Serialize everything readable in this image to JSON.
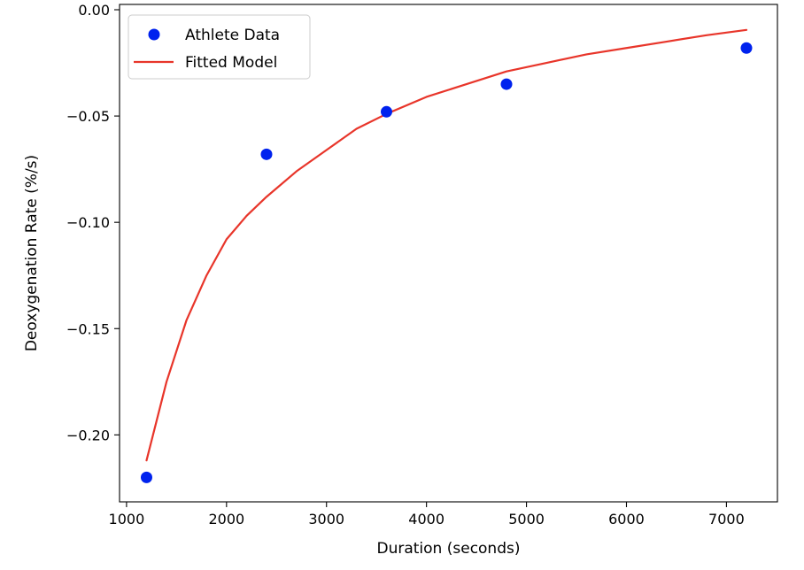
{
  "chart_data": {
    "type": "scatter",
    "xlabel": "Duration (seconds)",
    "ylabel": "Deoxygenation Rate (%/s)",
    "xlim": [
      930,
      7510
    ],
    "ylim": [
      -0.2315,
      0.0025
    ],
    "x_ticks": [
      1000,
      2000,
      3000,
      4000,
      5000,
      6000,
      7000
    ],
    "y_ticks": [
      0.0,
      -0.05,
      -0.1,
      -0.15,
      -0.2
    ],
    "x_tick_labels": [
      "1000",
      "2000",
      "3000",
      "4000",
      "5000",
      "6000",
      "7000"
    ],
    "y_tick_labels": [
      "0.00",
      "−0.05",
      "−0.10",
      "−0.15",
      "−0.20"
    ],
    "grid": false,
    "legend": {
      "position": "top-left",
      "entries": [
        {
          "label": "Athlete Data",
          "marker": "dot",
          "color": "#0022ee"
        },
        {
          "label": "Fitted Model",
          "marker": "line",
          "color": "#e8352a"
        }
      ]
    },
    "series": [
      {
        "name": "Athlete Data",
        "kind": "scatter",
        "color": "#0022ee",
        "x": [
          1200,
          2400,
          3600,
          4800,
          7200
        ],
        "y": [
          -0.22,
          -0.068,
          -0.048,
          -0.035,
          -0.018
        ]
      },
      {
        "name": "Fitted Model",
        "kind": "line",
        "color": "#e8352a",
        "x": [
          1200,
          1400,
          1600,
          1800,
          2000,
          2200,
          2400,
          2700,
          3000,
          3300,
          3600,
          4000,
          4400,
          4800,
          5200,
          5600,
          6000,
          6400,
          6800,
          7200
        ],
        "y": [
          -0.212,
          -0.175,
          -0.146,
          -0.125,
          -0.108,
          -0.097,
          -0.088,
          -0.076,
          -0.066,
          -0.056,
          -0.049,
          -0.041,
          -0.035,
          -0.029,
          -0.025,
          -0.021,
          -0.018,
          -0.015,
          -0.012,
          -0.0095
        ]
      }
    ]
  }
}
